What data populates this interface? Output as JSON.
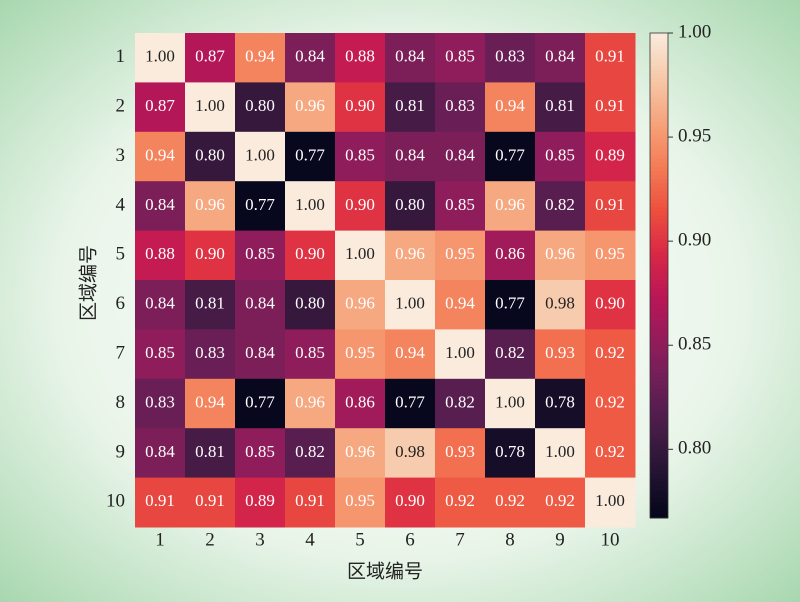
{
  "chart_data": {
    "type": "heatmap",
    "x_label": "区域编号",
    "y_label": "区域编号",
    "categories": [
      "1",
      "2",
      "3",
      "4",
      "5",
      "6",
      "7",
      "8",
      "9",
      "10"
    ],
    "y_categories": [
      "1",
      "2",
      "3",
      "4",
      "5",
      "6",
      "7",
      "8",
      "9",
      "10"
    ],
    "values": [
      [
        1.0,
        0.87,
        0.94,
        0.84,
        0.88,
        0.84,
        0.85,
        0.83,
        0.84,
        0.91
      ],
      [
        0.87,
        1.0,
        0.8,
        0.96,
        0.9,
        0.81,
        0.83,
        0.94,
        0.81,
        0.91
      ],
      [
        0.94,
        0.8,
        1.0,
        0.77,
        0.85,
        0.84,
        0.84,
        0.77,
        0.85,
        0.89
      ],
      [
        0.84,
        0.96,
        0.77,
        1.0,
        0.9,
        0.8,
        0.85,
        0.96,
        0.82,
        0.91
      ],
      [
        0.88,
        0.9,
        0.85,
        0.9,
        1.0,
        0.96,
        0.95,
        0.86,
        0.96,
        0.95
      ],
      [
        0.84,
        0.81,
        0.84,
        0.8,
        0.96,
        1.0,
        0.94,
        0.77,
        0.98,
        0.9
      ],
      [
        0.85,
        0.83,
        0.84,
        0.85,
        0.95,
        0.94,
        1.0,
        0.82,
        0.93,
        0.92
      ],
      [
        0.83,
        0.94,
        0.77,
        0.96,
        0.86,
        0.77,
        0.82,
        1.0,
        0.78,
        0.92
      ],
      [
        0.84,
        0.81,
        0.85,
        0.82,
        0.96,
        0.98,
        0.93,
        0.78,
        1.0,
        0.92
      ],
      [
        0.91,
        0.91,
        0.89,
        0.91,
        0.95,
        0.9,
        0.92,
        0.92,
        0.92,
        1.0
      ]
    ],
    "value_labels": [
      [
        "1.00",
        "0.87",
        "0.94",
        "0.84",
        "0.88",
        "0.84",
        "0.85",
        "0.83",
        "0.84",
        "0.91"
      ],
      [
        "0.87",
        "1.00",
        "0.80",
        "0.96",
        "0.90",
        "0.81",
        "0.83",
        "0.94",
        "0.81",
        "0.91"
      ],
      [
        "0.94",
        "0.80",
        "1.00",
        "0.77",
        "0.85",
        "0.84",
        "0.84",
        "0.77",
        "0.85",
        "0.89"
      ],
      [
        "0.84",
        "0.96",
        "0.77",
        "1.00",
        "0.90",
        "0.80",
        "0.85",
        "0.96",
        "0.82",
        "0.91"
      ],
      [
        "0.88",
        "0.90",
        "0.85",
        "0.90",
        "1.00",
        "0.96",
        "0.95",
        "0.86",
        "0.96",
        "0.95"
      ],
      [
        "0.84",
        "0.81",
        "0.84",
        "0.80",
        "0.96",
        "1.00",
        "0.94",
        "0.77",
        "0.98",
        "0.90"
      ],
      [
        "0.85",
        "0.83",
        "0.84",
        "0.85",
        "0.95",
        "0.94",
        "1.00",
        "0.82",
        "0.93",
        "0.92"
      ],
      [
        "0.83",
        "0.94",
        "0.77",
        "0.96",
        "0.86",
        "0.77",
        "0.82",
        "1.00",
        "0.78",
        "0.92"
      ],
      [
        "0.84",
        "0.81",
        "0.85",
        "0.82",
        "0.96",
        "0.98",
        "0.93",
        "0.78",
        "1.00",
        "0.92"
      ],
      [
        "0.91",
        "0.91",
        "0.89",
        "0.91",
        "0.95",
        "0.90",
        "0.92",
        "0.92",
        "0.92",
        "1.00"
      ]
    ],
    "colorscale": [
      "#03051a",
      "#221331",
      "#451c47",
      "#6a1f56",
      "#921c5b",
      "#b91657",
      "#d92847",
      "#ed503e",
      "#f47d57",
      "#f6a47c",
      "#f7c9aa",
      "#faebdd"
    ],
    "zlim": [
      0.767,
      1.0
    ],
    "zticks": [
      {
        "value": 0.8,
        "label": "0.80"
      },
      0.85,
      {
        "value": 0.9,
        "label": "0.90"
      },
      0.95,
      {
        "value": 1.0,
        "label": "1.00"
      }
    ]
  }
}
